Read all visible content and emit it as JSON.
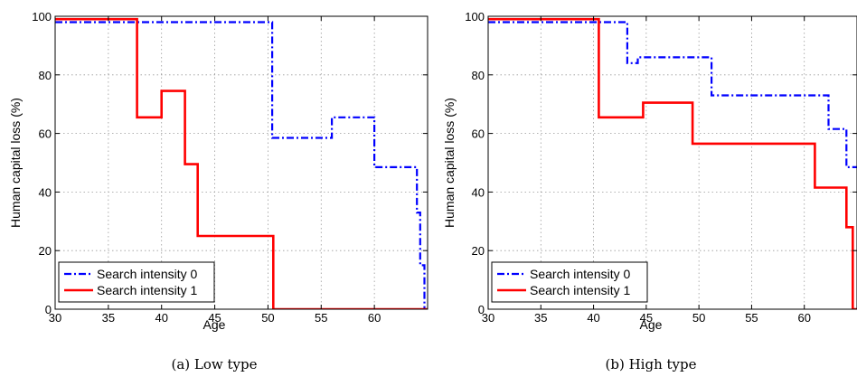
{
  "chart_data": [
    {
      "type": "line",
      "caption": "(a) Low type",
      "xlabel": "Age",
      "ylabel": "Human capital loss (%)",
      "xlim": [
        30,
        65
      ],
      "ylim": [
        0,
        100
      ],
      "xticks": [
        30,
        35,
        40,
        45,
        50,
        55,
        60
      ],
      "yticks": [
        0,
        20,
        40,
        60,
        80,
        100
      ],
      "grid": true,
      "legend": "bottom-left",
      "series": [
        {
          "name": "Search intensity 0",
          "color": "#0000ff",
          "style": "dash-dot",
          "x": [
            30,
            50.4,
            50.4,
            56,
            56,
            60,
            60,
            64,
            64,
            64.3,
            64.3,
            64.7,
            64.7
          ],
          "y": [
            98,
            98,
            58.5,
            58.5,
            65.5,
            65.5,
            48.5,
            48.5,
            33,
            33,
            15,
            15,
            0
          ]
        },
        {
          "name": "Search intensity 1",
          "color": "#ff0000",
          "style": "solid",
          "x": [
            30,
            37.7,
            37.7,
            40,
            40,
            42.2,
            42.2,
            43.4,
            43.4,
            50.5,
            50.5,
            65
          ],
          "y": [
            99,
            99,
            65.5,
            65.5,
            74.5,
            74.5,
            49.5,
            49.5,
            25,
            25,
            0,
            0
          ]
        }
      ]
    },
    {
      "type": "line",
      "caption": "(b) High type",
      "xlabel": "Age",
      "ylabel": "Human capital loss (%)",
      "xlim": [
        30,
        65
      ],
      "ylim": [
        0,
        100
      ],
      "xticks": [
        30,
        35,
        40,
        45,
        50,
        55,
        60
      ],
      "yticks": [
        0,
        20,
        40,
        60,
        80,
        100
      ],
      "grid": true,
      "legend": "bottom-left",
      "series": [
        {
          "name": "Search intensity 0",
          "color": "#0000ff",
          "style": "dash-dot",
          "x": [
            30,
            43.2,
            43.2,
            44.2,
            44.2,
            51.2,
            51.2,
            62.3,
            62.3,
            64,
            64,
            65
          ],
          "y": [
            98,
            98,
            84,
            84,
            86,
            86,
            73,
            73,
            61.5,
            61.5,
            48.5,
            48.5
          ]
        },
        {
          "name": "Search intensity 1",
          "color": "#ff0000",
          "style": "solid",
          "x": [
            30,
            40.5,
            40.5,
            44.7,
            44.7,
            49.4,
            49.4,
            61,
            61,
            64,
            64,
            64.6,
            64.6,
            65
          ],
          "y": [
            99,
            99,
            65.5,
            65.5,
            70.5,
            70.5,
            56.5,
            56.5,
            41.5,
            41.5,
            28,
            28,
            0,
            0
          ]
        }
      ]
    }
  ]
}
